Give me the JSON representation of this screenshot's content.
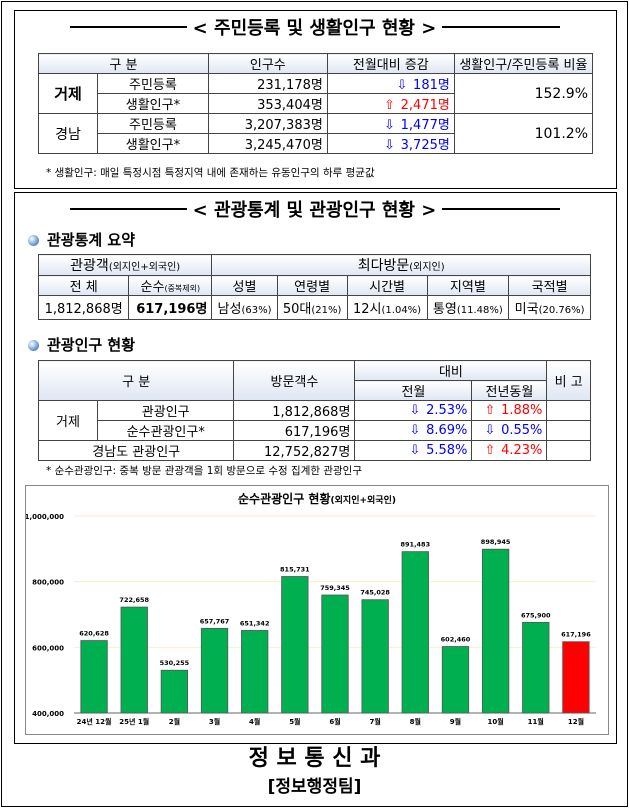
{
  "section1": {
    "title": "< 주민등록 및 생활인구 현황 >",
    "headers": [
      "구 분",
      "인구수",
      "전월대비 증감",
      "생활인구/주민등록 비율"
    ],
    "rows": [
      {
        "region": "거제",
        "type": "주민등록",
        "pop": "231,178명",
        "dir": "down",
        "change": "181명",
        "ratio": "152.9%"
      },
      {
        "type": "생활인구*",
        "pop": "353,404명",
        "dir": "up",
        "change": "2,471명"
      },
      {
        "region": "경남",
        "type": "주민등록",
        "pop": "3,207,383명",
        "dir": "down",
        "change": "1,477명",
        "ratio": "101.2%"
      },
      {
        "type": "생활인구*",
        "pop": "3,245,470명",
        "dir": "down",
        "change": "3,725명"
      }
    ],
    "note": "* 생활인구: 매일 특정시점 특정지역 내에 존재하는 유동인구의 하루 평균값"
  },
  "section2": {
    "title": "< 관광통계 및 관광인구 현황 >",
    "summary_title": "관광통계 요약",
    "summary": {
      "h1": "관광객",
      "h1_sub": "(외지인+외국인)",
      "h2": "최다방문",
      "h2_sub": "(외지인)",
      "cols": [
        "전 체",
        "순수",
        "성별",
        "연령별",
        "시간별",
        "지역별",
        "국적별"
      ],
      "col2_sub": "(중복제외)",
      "vals": [
        "1,812,868명",
        "617,196명"
      ],
      "top": [
        [
          "남성",
          "(63%)"
        ],
        [
          "50대",
          "(21%)"
        ],
        [
          "12시",
          "(1.04%)"
        ],
        [
          "통영",
          "(11.48%)"
        ],
        [
          "미국",
          "(20.76%)"
        ]
      ]
    },
    "status_title": "관광인구 현황",
    "status": {
      "headers": [
        "구 분",
        "방문객수",
        "대비",
        "전월",
        "전년동월",
        "비 고"
      ],
      "rows": [
        {
          "region": "거제",
          "type": "관광인구",
          "count": "1,812,868명",
          "m_dir": "down",
          "m": "2.53%",
          "y_dir": "up",
          "y": "1.88%"
        },
        {
          "type": "순수관광인구*",
          "count": "617,196명",
          "m_dir": "down",
          "m": "8.69%",
          "y_dir": "down",
          "y": "0.55%"
        },
        {
          "type": "경남도 관광인구",
          "count": "12,752,827명",
          "m_dir": "down",
          "m": "5.58%",
          "y_dir": "up",
          "y": "4.23%"
        }
      ]
    },
    "note": "* 순수관광인구: 중복 방문 관광객을 1회 방문으로 수정 집계한 관광인구"
  },
  "chart_data": {
    "type": "bar",
    "title": "순수관광인구 현황",
    "title_sub": "(외지인+외국인)",
    "categories": [
      "24년 12월",
      "25년 1월",
      "2월",
      "3월",
      "4월",
      "5월",
      "6월",
      "7월",
      "8월",
      "9월",
      "10월",
      "11월",
      "12월"
    ],
    "values": [
      620628,
      722658,
      530255,
      657767,
      651342,
      815731,
      759345,
      745028,
      891483,
      602460,
      898945,
      675900,
      617196
    ],
    "labels": [
      "620,628",
      "722,658",
      "530,255",
      "657,767",
      "651,342",
      "815,731",
      "759,345",
      "745,028",
      "891,483",
      "602,460",
      "898,945",
      "675,900",
      "617,196"
    ],
    "ylim": [
      400000,
      1000000
    ],
    "yticks": [
      "400,000",
      "600,000",
      "800,000",
      "1,000,000"
    ],
    "grid": true,
    "colors": {
      "bar": "#00b050",
      "highlight": "#ff0000"
    }
  },
  "footer": {
    "dept": "정 보 통 신 과",
    "team": "[정보행정팀]"
  },
  "colors": {
    "up": "#ff0000",
    "down": "#0000ff"
  }
}
